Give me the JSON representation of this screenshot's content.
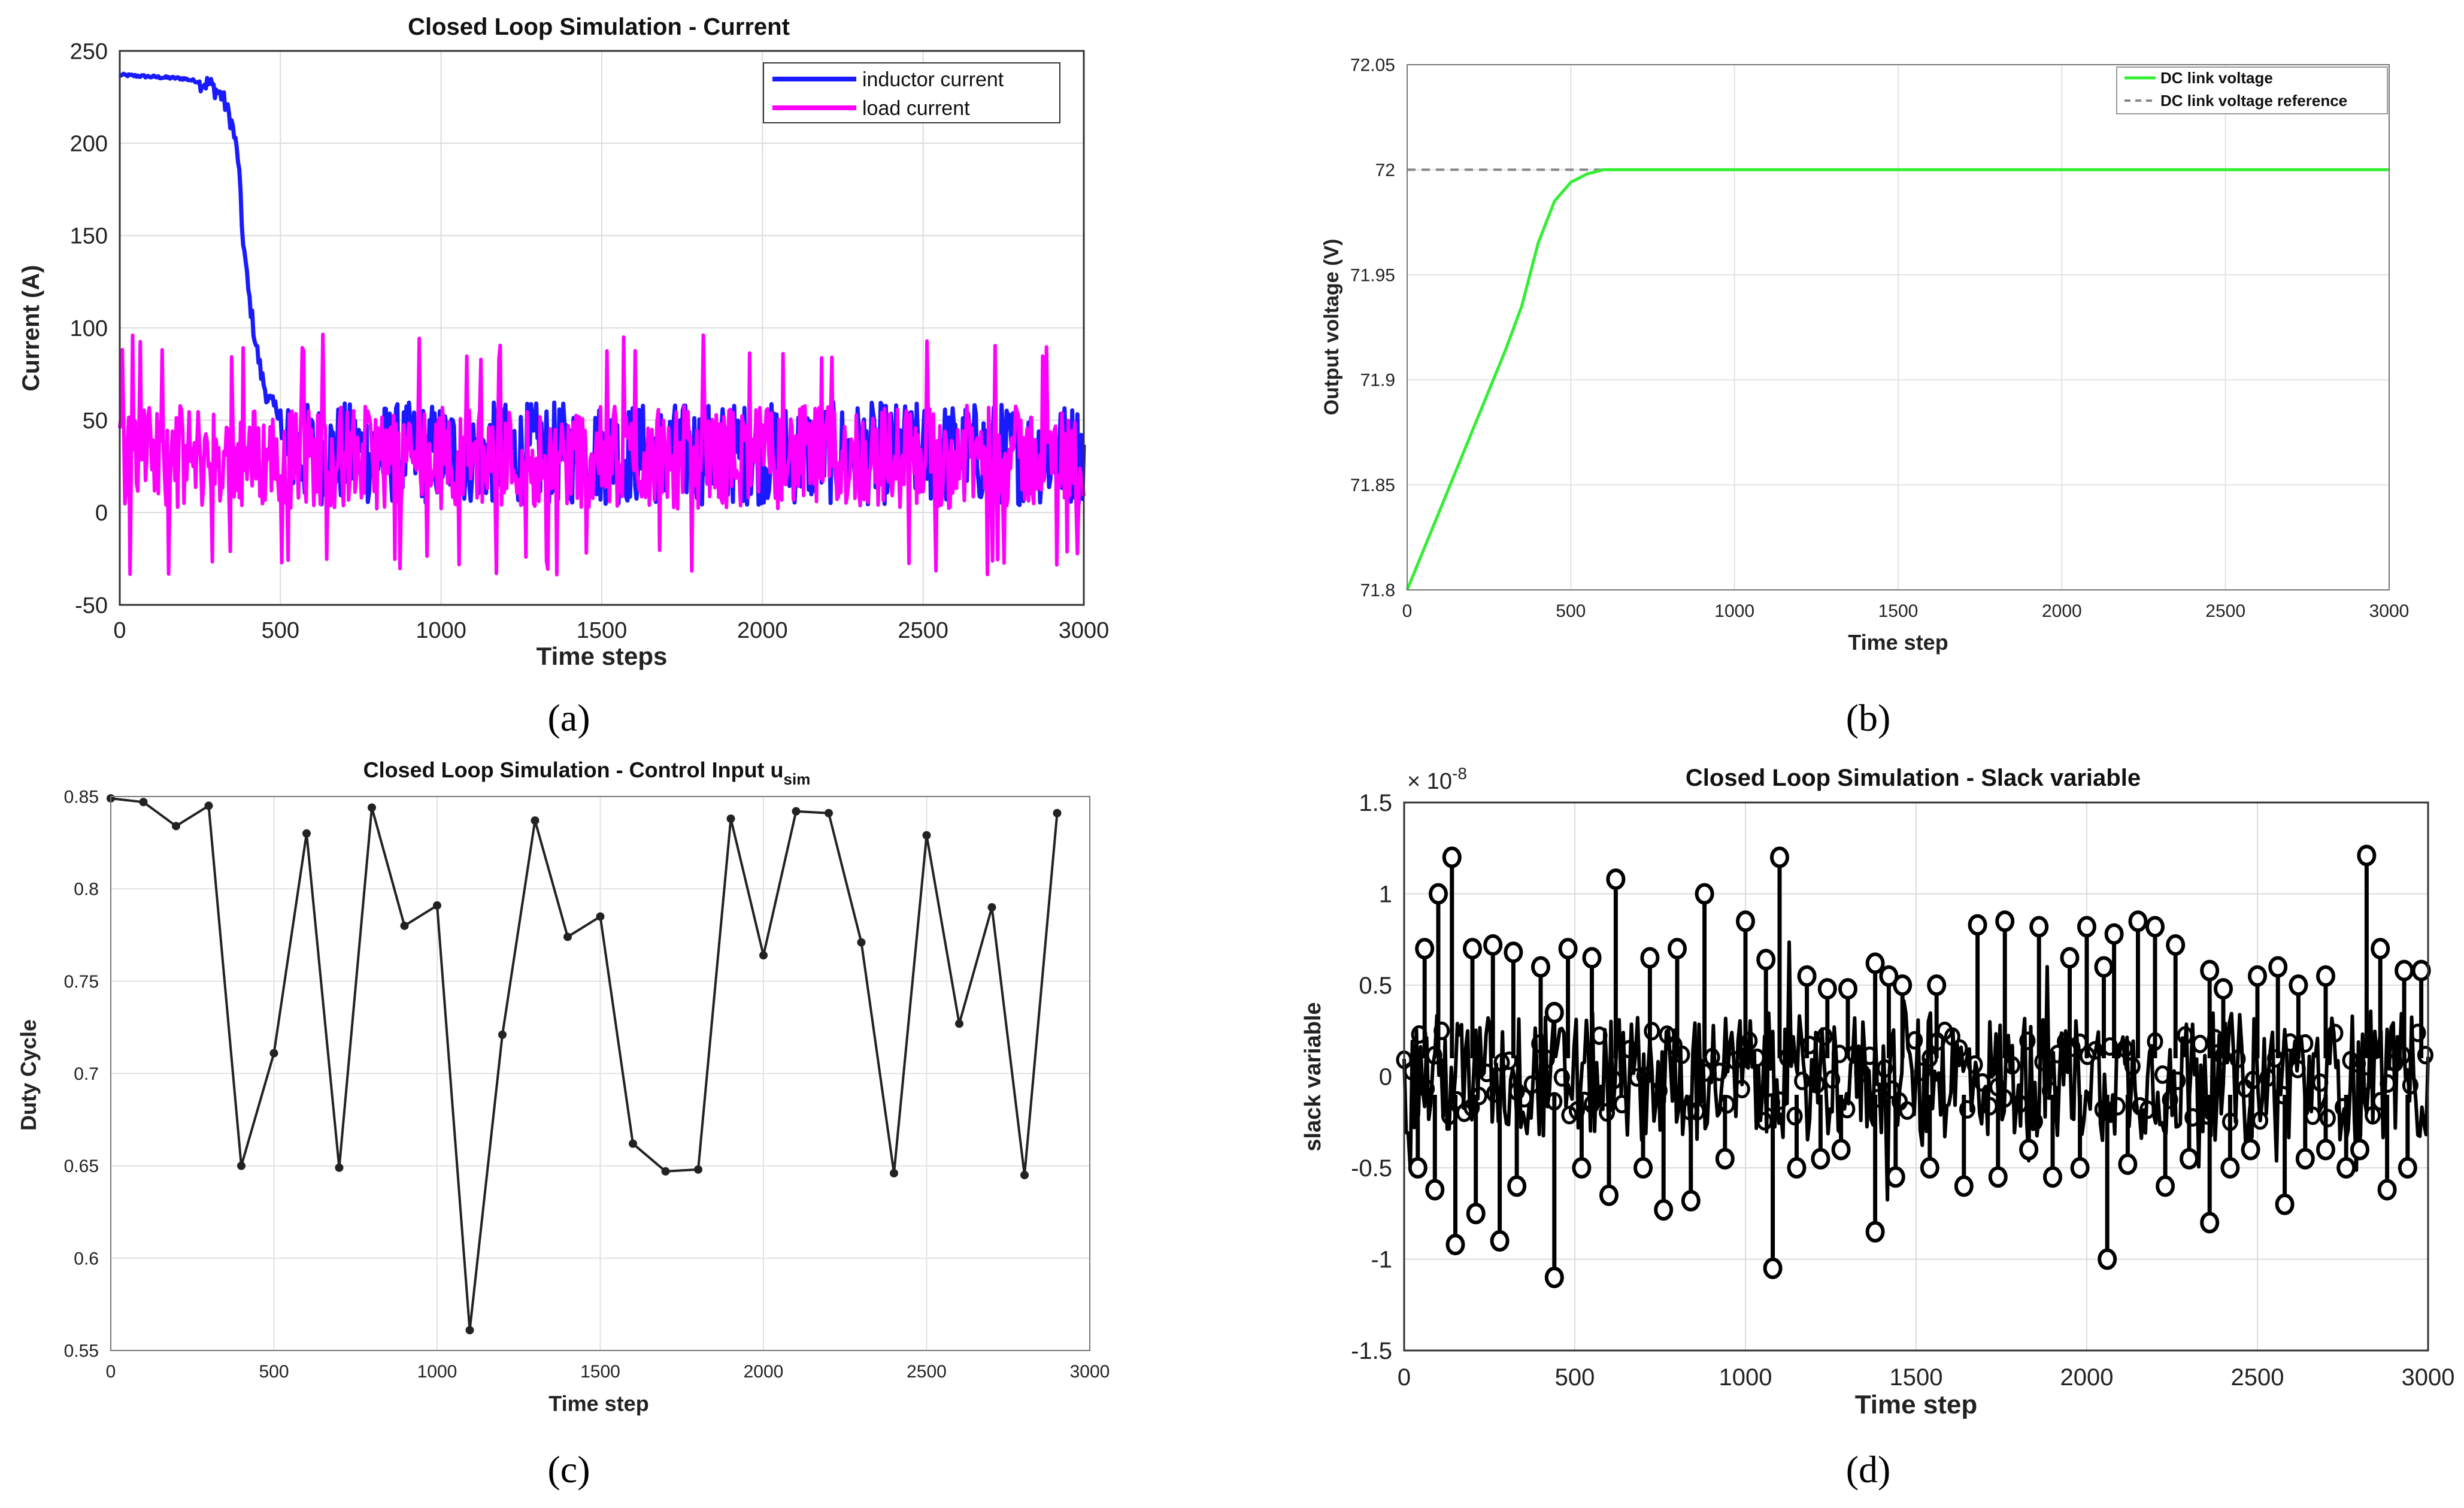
{
  "panels": {
    "a": {
      "caption": "(a)"
    },
    "b": {
      "caption": "(b)"
    },
    "c": {
      "caption": "(c)"
    },
    "d": {
      "caption": "(d)"
    }
  },
  "chart_data": [
    {
      "id": "a",
      "type": "line",
      "title": "Closed Loop Simulation - Current",
      "xlabel": "Time steps",
      "ylabel": "Current (A)",
      "xlim": [
        0,
        3000
      ],
      "ylim": [
        -50,
        250
      ],
      "xticks": [
        "0",
        "500",
        "1000",
        "1500",
        "2000",
        "2500",
        "3000"
      ],
      "yticks": [
        "-50",
        "0",
        "50",
        "100",
        "150",
        "200",
        "250"
      ],
      "grid": true,
      "legend": "top-right",
      "series": [
        {
          "name": "inductor current",
          "color": "#1a1aff",
          "x": [
            0,
            100,
            200,
            280,
            320,
            350,
            370,
            380,
            400,
            420,
            440,
            460,
            480,
            500
          ],
          "values": [
            237,
            236,
            235,
            232,
            225,
            210,
            190,
            155,
            120,
            95,
            75,
            62,
            57,
            55
          ],
          "noise_mean": 32,
          "noise_amp": 28
        },
        {
          "name": "load current",
          "color": "#ff00ff",
          "noise_mean": 30,
          "noise_amp": 28,
          "range": [
            -35,
            97
          ]
        }
      ]
    },
    {
      "id": "b",
      "type": "line",
      "title": "",
      "xlabel": "Time step",
      "ylabel": "Output voltage (V)",
      "xlim": [
        0,
        3000
      ],
      "ylim": [
        71.8,
        72.05
      ],
      "xticks": [
        "0",
        "500",
        "1000",
        "1500",
        "2000",
        "2500",
        "3000"
      ],
      "yticks": [
        "71.8",
        "71.85",
        "71.9",
        "71.95",
        "72",
        "72.05"
      ],
      "grid": true,
      "legend": "top-right",
      "series": [
        {
          "name": "DC link voltage",
          "color": "#33ee33",
          "x": [
            0,
            100,
            200,
            300,
            350,
            400,
            450,
            500,
            550,
            600,
            700,
            3000
          ],
          "values": [
            71.8,
            71.838,
            71.876,
            71.914,
            71.935,
            71.965,
            71.985,
            71.994,
            71.998,
            72.0,
            72.0,
            72.0
          ]
        },
        {
          "name": "DC link voltage reference",
          "color": "#888888",
          "dashed": true,
          "x": [
            0,
            3000
          ],
          "values": [
            72.0,
            72.0
          ]
        }
      ]
    },
    {
      "id": "c",
      "type": "line",
      "title": "Closed Loop Simulation - Control Input u",
      "title_sub": "sim",
      "xlabel": "Time step",
      "ylabel": "Duty Cycle",
      "xlim": [
        0,
        3000
      ],
      "ylim": [
        0.55,
        0.85
      ],
      "xticks": [
        "0",
        "500",
        "1000",
        "1500",
        "2000",
        "2500",
        "3000"
      ],
      "yticks": [
        "0.55",
        "0.6",
        "0.65",
        "0.7",
        "0.75",
        "0.8",
        "0.85"
      ],
      "grid": true,
      "series": [
        {
          "name": "u_sim",
          "color": "#222222",
          "x": [
            0,
            100,
            200,
            300,
            400,
            500,
            600,
            700,
            800,
            900,
            1000,
            1100,
            1200,
            1300,
            1400,
            1500,
            1600,
            1700,
            1800,
            1900,
            2000,
            2100,
            2200,
            2300,
            2400,
            2500,
            2600,
            2700,
            2800,
            2900
          ],
          "values": [
            0.849,
            0.847,
            0.834,
            0.845,
            0.65,
            0.711,
            0.83,
            0.649,
            0.844,
            0.78,
            0.791,
            0.561,
            0.721,
            0.837,
            0.774,
            0.785,
            0.662,
            0.647,
            0.648,
            0.838,
            0.764,
            0.842,
            0.841,
            0.771,
            0.646,
            0.829,
            0.727,
            0.79,
            0.645,
            0.841
          ]
        }
      ]
    },
    {
      "id": "d",
      "type": "scatter",
      "title": "Closed Loop Simulation - Slack variable",
      "xlabel": "Time step",
      "ylabel": "slack variable",
      "exponent": "× 10",
      "exponent_power": "-8",
      "xlim": [
        0,
        3000
      ],
      "ylim": [
        -1.5,
        1.5
      ],
      "xticks": [
        "0",
        "500",
        "1000",
        "1500",
        "2000",
        "2500",
        "3000"
      ],
      "yticks": [
        "-1.5",
        "-1",
        "-0.5",
        "0",
        "0.5",
        "1",
        "1.5"
      ],
      "grid": true,
      "series": [
        {
          "name": "slack variable",
          "color": "#000000",
          "peaks_x": [
            60,
            100,
            140,
            200,
            260,
            320,
            400,
            440,
            480,
            550,
            620,
            720,
            800,
            880,
            1000,
            1060,
            1100,
            1180,
            1240,
            1300,
            1380,
            1420,
            1460,
            1560,
            1680,
            1760,
            1860,
            1950,
            2000,
            2050,
            2080,
            2150,
            2200,
            2260,
            2360,
            2400,
            2500,
            2560,
            2620,
            2700,
            2820,
            2860,
            2930,
            2980
          ],
          "peaks_y": [
            0.7,
            1.0,
            1.2,
            0.7,
            0.72,
            0.68,
            0.6,
            0.35,
            0.7,
            0.65,
            1.08,
            0.65,
            0.7,
            1.0,
            0.85,
            0.64,
            1.2,
            0.55,
            0.48,
            0.48,
            0.62,
            0.55,
            0.5,
            0.5,
            0.83,
            0.85,
            0.82,
            0.65,
            0.82,
            0.6,
            0.78,
            0.85,
            0.82,
            0.72,
            0.58,
            0.48,
            0.55,
            0.6,
            0.5,
            0.55,
            1.21,
            0.7,
            0.58,
            0.58
          ],
          "troughs_x": [
            40,
            90,
            150,
            210,
            280,
            330,
            440,
            520,
            600,
            700,
            760,
            840,
            940,
            1080,
            1150,
            1220,
            1280,
            1380,
            1440,
            1540,
            1640,
            1740,
            1830,
            1900,
            1980,
            2060,
            2120,
            2230,
            2300,
            2360,
            2420,
            2480,
            2580,
            2640,
            2700,
            2760,
            2800,
            2880,
            2940
          ],
          "troughs_y": [
            -0.5,
            -0.62,
            -0.92,
            -0.75,
            -0.9,
            -0.6,
            -1.1,
            -0.5,
            -0.65,
            -0.5,
            -0.73,
            -0.68,
            -0.45,
            -1.05,
            -0.5,
            -0.45,
            -0.4,
            -0.85,
            -0.55,
            -0.5,
            -0.6,
            -0.55,
            -0.4,
            -0.55,
            -0.5,
            -1.0,
            -0.48,
            -0.6,
            -0.45,
            -0.8,
            -0.5,
            -0.4,
            -0.7,
            -0.45,
            -0.4,
            -0.5,
            -0.4,
            -0.62,
            -0.5
          ]
        }
      ]
    }
  ]
}
